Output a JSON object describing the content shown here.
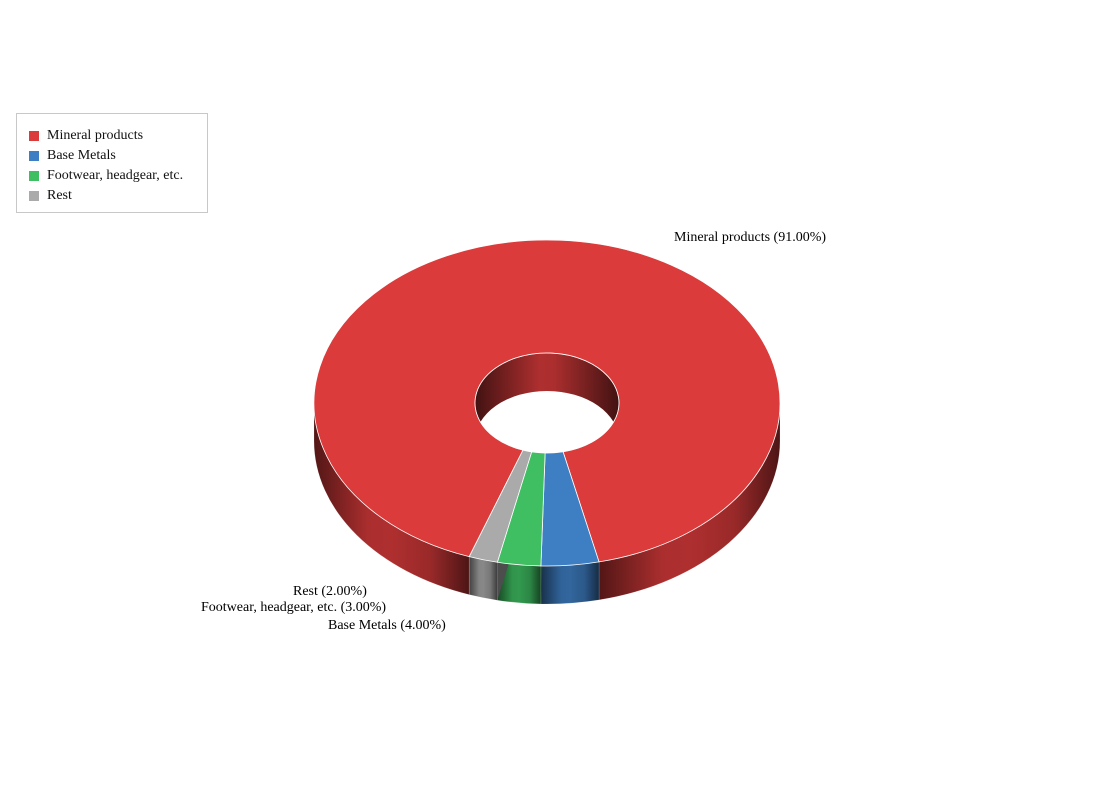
{
  "chart_data": {
    "type": "pie",
    "variant": "3d-donut",
    "title": "",
    "legend_position": "top-left",
    "slices": [
      {
        "label": "Mineral products",
        "value": 91.0,
        "display": "Mineral products (91.00%)",
        "color": "#db3b3b"
      },
      {
        "label": "Base Metals",
        "value": 4.0,
        "display": "Base Metals (4.00%)",
        "color": "#3e7fc4"
      },
      {
        "label": "Footwear, headgear, etc.",
        "value": 3.0,
        "display": "Footwear, headgear, etc. (3.00%)",
        "color": "#3fbf62"
      },
      {
        "label": "Rest",
        "value": 2.0,
        "display": "Rest (2.00%)",
        "color": "#aaaaaa"
      }
    ]
  }
}
